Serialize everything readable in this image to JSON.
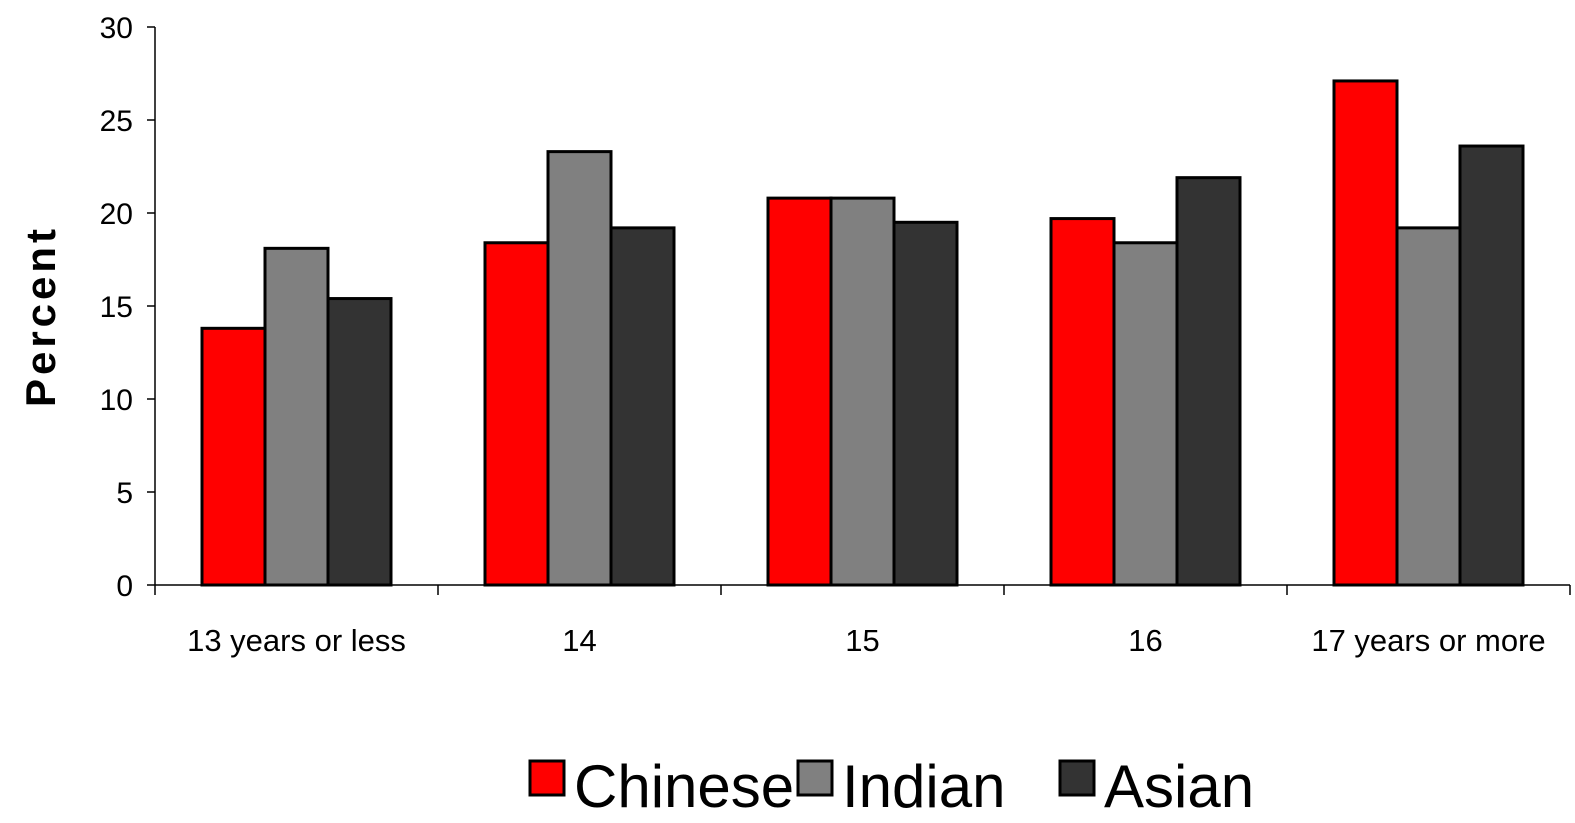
{
  "chart_data": {
    "type": "bar",
    "title": "",
    "xlabel": "",
    "ylabel": "Percent",
    "ylim": [
      0,
      30
    ],
    "yticks": [
      0,
      5,
      10,
      15,
      20,
      25,
      30
    ],
    "grid": false,
    "legend_position": "bottom",
    "categories": [
      "13 years or less",
      "14",
      "15",
      "16",
      "17 years or more"
    ],
    "series": [
      {
        "name": "Chinese",
        "color": "#ff0000",
        "values": [
          13.8,
          18.4,
          20.8,
          19.7,
          27.1
        ]
      },
      {
        "name": "Indian",
        "color": "#808080",
        "values": [
          18.1,
          23.3,
          20.8,
          18.4,
          19.2
        ]
      },
      {
        "name": "Asian",
        "color": "#333333",
        "values": [
          15.4,
          19.2,
          19.5,
          21.9,
          23.6
        ]
      }
    ]
  }
}
